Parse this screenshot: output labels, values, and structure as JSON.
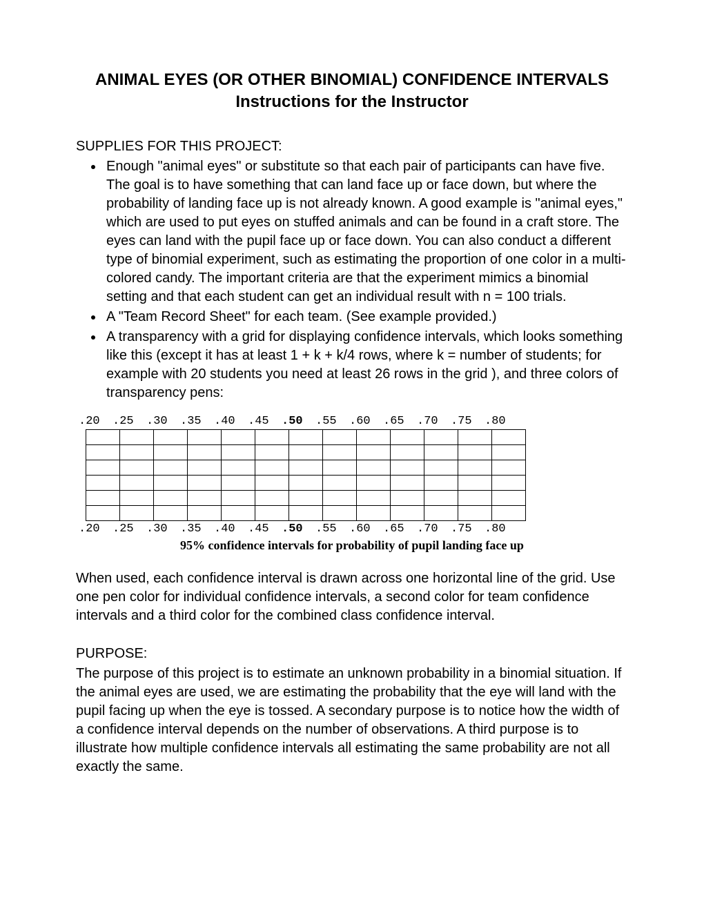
{
  "title_line1": "ANIMAL EYES (OR OTHER BINOMIAL) CONFIDENCE INTERVALS",
  "title_line2": "Instructions for the Instructor",
  "supplies_head": "SUPPLIES FOR THIS PROJECT:",
  "bullets": [
    "Enough \"animal eyes\" or substitute so that each pair of participants can have five. The goal is to have something that can land face up or face down, but where the probability of landing face up is not already known. A good example is \"animal eyes,\" which are used to put eyes on stuffed animals and can be found in a craft store. The eyes can land with the pupil face up or face down. You can also conduct a different type of binomial experiment, such as estimating the proportion of one color in a multi-colored candy. The important criteria are that the experiment mimics a binomial setting and that each student can get an individual result with n = 100 trials.",
    "A \"Team Record Sheet\" for each team. (See example provided.)",
    "A transparency with a grid for displaying confidence intervals, which looks something like this (except it has at least 1 + k + k/4 rows, where k = number of students; for example with 20 students you need at least 26 rows in the grid ), and three colors of transparency pens:"
  ],
  "grid": {
    "labels": [
      ".20",
      ".25",
      ".30",
      ".35",
      ".40",
      ".45",
      ".50",
      ".55",
      ".60",
      ".65",
      ".70",
      ".75",
      ".80"
    ],
    "bold_index": 6,
    "rows": 6,
    "cols": 13,
    "caption": "95% confidence intervals for probability of pupil landing face up"
  },
  "when_used": "When used, each confidence interval is drawn across one horizontal line of the grid. Use one pen color for individual confidence intervals, a second color for team confidence intervals and a third color for the combined class confidence interval.",
  "purpose_head": "PURPOSE:",
  "purpose_body": "The purpose of this project is to estimate an unknown probability in a binomial situation. If the animal eyes are used, we are estimating the probability that the eye will land with the pupil facing up when the eye is tossed. A secondary purpose is to notice how the width of a confidence interval depends on the number of observations. A third purpose is to illustrate how multiple confidence intervals all estimating the same probability are not all exactly the same."
}
